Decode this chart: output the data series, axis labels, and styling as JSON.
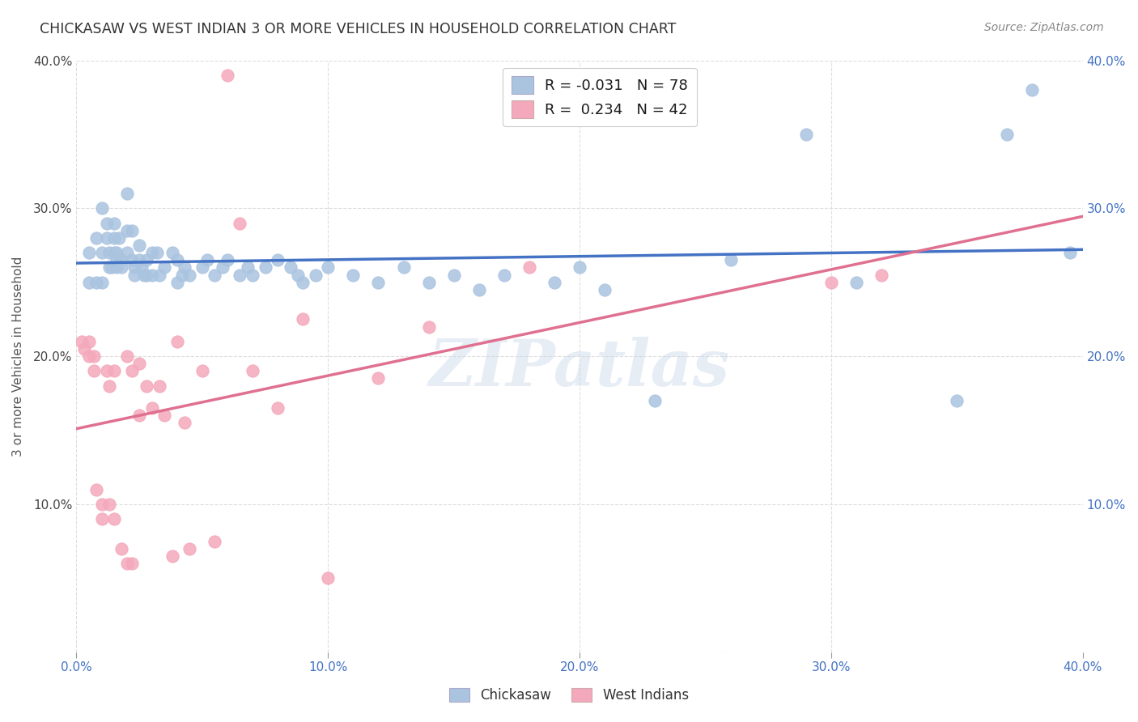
{
  "title": "CHICKASAW VS WEST INDIAN 3 OR MORE VEHICLES IN HOUSEHOLD CORRELATION CHART",
  "source": "Source: ZipAtlas.com",
  "ylabel": "3 or more Vehicles in Household",
  "watermark": "ZIPatlas",
  "xlim": [
    0.0,
    0.4
  ],
  "ylim": [
    0.0,
    0.4
  ],
  "xtick_vals": [
    0.0,
    0.1,
    0.2,
    0.3,
    0.4
  ],
  "ytick_vals": [
    0.0,
    0.1,
    0.2,
    0.3,
    0.4
  ],
  "xtick_labels": [
    "0.0%",
    "10.0%",
    "20.0%",
    "30.0%",
    "40.0%"
  ],
  "ytick_labels_left": [
    "",
    "10.0%",
    "20.0%",
    "30.0%",
    "40.0%"
  ],
  "ytick_labels_right": [
    "",
    "10.0%",
    "20.0%",
    "30.0%",
    "40.0%"
  ],
  "chickasaw_color": "#aac4e0",
  "west_indian_color": "#f4a8bb",
  "trendline_chickasaw_color": "#4472c4",
  "trendline_west_indian_color": "#e07090",
  "legend_label_chickasaw": "Chickasaw",
  "legend_label_west_indian": "West Indians",
  "R_chickasaw": -0.031,
  "N_chickasaw": 78,
  "R_west_indian": 0.234,
  "N_west_indian": 42,
  "chickasaw_x": [
    0.005,
    0.005,
    0.008,
    0.008,
    0.01,
    0.01,
    0.01,
    0.012,
    0.012,
    0.013,
    0.013,
    0.014,
    0.015,
    0.015,
    0.015,
    0.016,
    0.016,
    0.016,
    0.017,
    0.018,
    0.018,
    0.02,
    0.02,
    0.02,
    0.022,
    0.022,
    0.023,
    0.023,
    0.025,
    0.025,
    0.026,
    0.027,
    0.028,
    0.028,
    0.03,
    0.03,
    0.032,
    0.033,
    0.035,
    0.038,
    0.04,
    0.04,
    0.042,
    0.043,
    0.045,
    0.05,
    0.052,
    0.055,
    0.058,
    0.06,
    0.065,
    0.068,
    0.07,
    0.075,
    0.08,
    0.085,
    0.088,
    0.09,
    0.095,
    0.1,
    0.11,
    0.12,
    0.13,
    0.14,
    0.15,
    0.16,
    0.17,
    0.19,
    0.2,
    0.21,
    0.23,
    0.26,
    0.29,
    0.31,
    0.35,
    0.37,
    0.38,
    0.395
  ],
  "chickasaw_y": [
    0.27,
    0.25,
    0.28,
    0.25,
    0.3,
    0.27,
    0.25,
    0.29,
    0.28,
    0.27,
    0.26,
    0.26,
    0.29,
    0.28,
    0.27,
    0.27,
    0.265,
    0.26,
    0.28,
    0.265,
    0.26,
    0.31,
    0.285,
    0.27,
    0.285,
    0.265,
    0.26,
    0.255,
    0.275,
    0.265,
    0.26,
    0.255,
    0.265,
    0.255,
    0.27,
    0.255,
    0.27,
    0.255,
    0.26,
    0.27,
    0.265,
    0.25,
    0.255,
    0.26,
    0.255,
    0.26,
    0.265,
    0.255,
    0.26,
    0.265,
    0.255,
    0.26,
    0.255,
    0.26,
    0.265,
    0.26,
    0.255,
    0.25,
    0.255,
    0.26,
    0.255,
    0.25,
    0.26,
    0.25,
    0.255,
    0.245,
    0.255,
    0.25,
    0.26,
    0.245,
    0.17,
    0.265,
    0.35,
    0.25,
    0.17,
    0.35,
    0.38,
    0.27
  ],
  "west_indian_x": [
    0.002,
    0.003,
    0.005,
    0.005,
    0.007,
    0.007,
    0.008,
    0.01,
    0.01,
    0.012,
    0.013,
    0.013,
    0.015,
    0.015,
    0.018,
    0.02,
    0.02,
    0.022,
    0.022,
    0.025,
    0.025,
    0.028,
    0.03,
    0.033,
    0.035,
    0.038,
    0.04,
    0.043,
    0.045,
    0.05,
    0.055,
    0.06,
    0.065,
    0.07,
    0.08,
    0.09,
    0.1,
    0.12,
    0.14,
    0.18,
    0.3,
    0.32
  ],
  "west_indian_y": [
    0.21,
    0.205,
    0.21,
    0.2,
    0.2,
    0.19,
    0.11,
    0.1,
    0.09,
    0.19,
    0.18,
    0.1,
    0.19,
    0.09,
    0.07,
    0.2,
    0.06,
    0.19,
    0.06,
    0.195,
    0.16,
    0.18,
    0.165,
    0.18,
    0.16,
    0.065,
    0.21,
    0.155,
    0.07,
    0.19,
    0.075,
    0.39,
    0.29,
    0.19,
    0.165,
    0.225,
    0.05,
    0.185,
    0.22,
    0.26,
    0.25,
    0.255
  ],
  "background_color": "#ffffff",
  "grid_color": "#dddddd",
  "legend_text_color": "#1a1a1a",
  "legend_R_color": "#2255cc",
  "left_ytick_color": "#444444",
  "right_ytick_color": "#4472c4",
  "xtick_color": "#4472c4",
  "source_color": "#888888",
  "title_color": "#333333"
}
